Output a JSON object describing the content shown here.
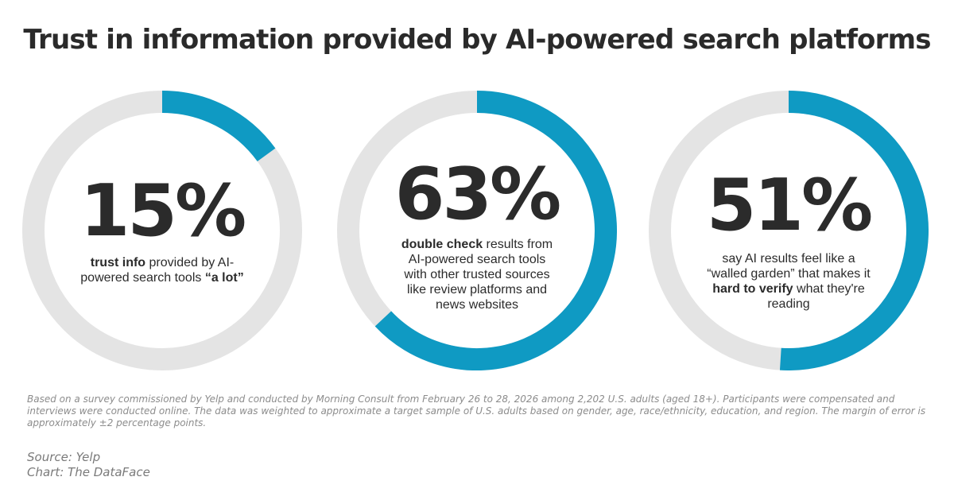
{
  "title": "Trust in information provided by AI-powered search platforms",
  "colors": {
    "track": "#e4e4e4",
    "fill": "#0f9ac3",
    "text": "#2b2b2b"
  },
  "chart_data": {
    "type": "donut",
    "items": [
      {
        "value": 15,
        "label": "15%",
        "desc": [
          {
            "text": "trust info",
            "bold": true
          },
          {
            "text": " provided by AI-powered search tools ",
            "bold": false
          },
          {
            "text": "“a lot”",
            "bold": true
          }
        ]
      },
      {
        "value": 63,
        "label": "63%",
        "desc": [
          {
            "text": "double check",
            "bold": true
          },
          {
            "text": " results from AI-powered search tools with other trusted sources like review platforms and news websites",
            "bold": false
          }
        ]
      },
      {
        "value": 51,
        "label": "51%",
        "desc": [
          {
            "text": "say AI results feel like a “walled garden” that makes it ",
            "bold": false
          },
          {
            "text": "hard to verify",
            "bold": true
          },
          {
            "text": " what they're reading",
            "bold": false
          }
        ]
      }
    ]
  },
  "footnote": "Based on a survey commissioned by Yelp and conducted by Morning Consult from February 26 to 28, 2026 among 2,202 U.S. adults (aged 18+). Participants were compensated and interviews were conducted online. The data was weighted to approximate a target sample of U.S. adults based on gender, age, race/ethnicity, education, and region. The margin of error is approximately ±2 percentage points.",
  "source": "Source: Yelp",
  "credit": "Chart: The DataFace"
}
